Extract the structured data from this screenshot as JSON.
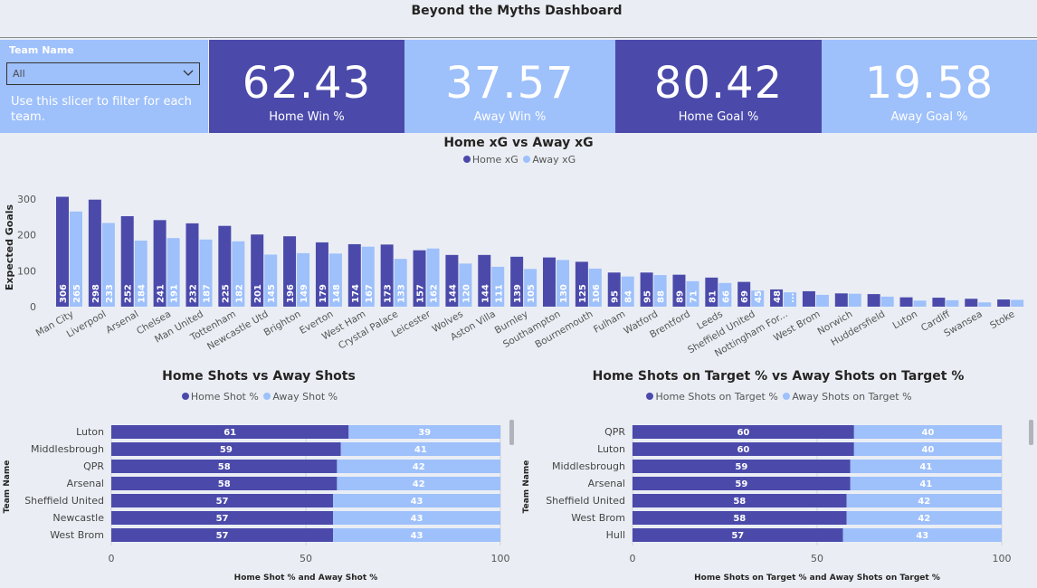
{
  "header": {
    "title": "Beyond the Myths Dashboard"
  },
  "slicer": {
    "label": "Team Name",
    "value": "All",
    "help": "Use this slicer to filter for each team."
  },
  "kpis": [
    {
      "value": "62.43",
      "caption": "Home Win %",
      "style": "dark"
    },
    {
      "value": "37.57",
      "caption": "Away Win %",
      "style": "light"
    },
    {
      "value": "80.42",
      "caption": "Home Goal %",
      "style": "dark"
    },
    {
      "value": "19.58",
      "caption": "Away Goal %",
      "style": "light"
    }
  ],
  "colors": {
    "home": "#4b4aab",
    "away": "#9ec0fb"
  },
  "chart_data": [
    {
      "type": "bar",
      "title": "Home xG vs Away xG",
      "ylabel": "Expected Goals",
      "xlabel": "",
      "ylim": [
        0,
        330
      ],
      "yticks": [
        0,
        100,
        200,
        300
      ],
      "categories": [
        "Man City",
        "Liverpool",
        "Arsenal",
        "Chelsea",
        "Man United",
        "Tottenham",
        "Newcastle Utd",
        "Brighton",
        "Everton",
        "West Ham",
        "Crystal Palace",
        "Leicester",
        "Wolves",
        "Aston Villa",
        "Burnley",
        "Southampton",
        "Bournemouth",
        "Fulham",
        "Watford",
        "Brentford",
        "Leeds",
        "Sheffield United",
        "Nottingham For...",
        "West Brom",
        "Norwich",
        "Huddersfield",
        "Luton",
        "Cardiff",
        "Swansea",
        "Stoke"
      ],
      "series": [
        {
          "name": "Home xG",
          "values": [
            306,
            298,
            252,
            241,
            232,
            225,
            201,
            196,
            179,
            174,
            173,
            157,
            144,
            144,
            139,
            137,
            125,
            95,
            95,
            89,
            81,
            69,
            48,
            43,
            37,
            35,
            26,
            25,
            22,
            20
          ],
          "labels": [
            "306",
            "298",
            "252",
            "241",
            "232",
            "225",
            "201",
            "196",
            "179",
            "174",
            "173",
            "157",
            "144",
            "144",
            "139",
            "",
            "125",
            "95",
            "95",
            "89",
            "81",
            "69",
            "48",
            "",
            "",
            "",
            "",
            "",
            "",
            ""
          ]
        },
        {
          "name": "Away xG",
          "values": [
            265,
            233,
            184,
            191,
            187,
            182,
            145,
            149,
            148,
            167,
            133,
            162,
            120,
            111,
            105,
            130,
            106,
            84,
            88,
            71,
            66,
            45,
            40,
            33,
            36,
            28,
            17,
            18,
            12,
            19
          ],
          "labels": [
            "265",
            "233",
            "184",
            "191",
            "187",
            "182",
            "145",
            "149",
            "148",
            "167",
            "133",
            "162",
            "120",
            "111",
            "105",
            "130",
            "106",
            "84",
            "88",
            "71",
            "66",
            "45",
            "...",
            "",
            "",
            "",
            "",
            "",
            "",
            ""
          ]
        }
      ],
      "legend_position": "top-center"
    },
    {
      "type": "bar",
      "orientation": "horizontal-stacked",
      "title": "Home Shots vs Away Shots",
      "ylabel": "Team Name",
      "xlabel": "Home Shot % and Away Shot %",
      "xlim": [
        0,
        100
      ],
      "xticks": [
        "0",
        "50",
        "100"
      ],
      "categories": [
        "Luton",
        "Middlesbrough",
        "QPR",
        "Arsenal",
        "Sheffield United",
        "Newcastle",
        "West Brom"
      ],
      "series": [
        {
          "name": "Home Shot %",
          "values": [
            61,
            59,
            58,
            58,
            57,
            57,
            57
          ]
        },
        {
          "name": "Away Shot %",
          "values": [
            39,
            41,
            42,
            42,
            43,
            43,
            43
          ]
        }
      ],
      "legend_position": "top-center"
    },
    {
      "type": "bar",
      "orientation": "horizontal-stacked",
      "title": "Home Shots on Target % vs Away Shots on Target %",
      "ylabel": "Team Name",
      "xlabel": "Home Shots on Target % and Away Shots on Target %",
      "xlim": [
        0,
        100
      ],
      "xticks": [
        "0",
        "50",
        "100"
      ],
      "categories": [
        "QPR",
        "Luton",
        "Middlesbrough",
        "Arsenal",
        "Sheffield United",
        "West Brom",
        "Hull"
      ],
      "series": [
        {
          "name": "Home Shots on Target %",
          "values": [
            60,
            60,
            59,
            59,
            58,
            58,
            57
          ]
        },
        {
          "name": "Away Shots on Target %",
          "values": [
            40,
            40,
            41,
            41,
            42,
            42,
            43
          ]
        }
      ],
      "legend_position": "top-center"
    }
  ]
}
